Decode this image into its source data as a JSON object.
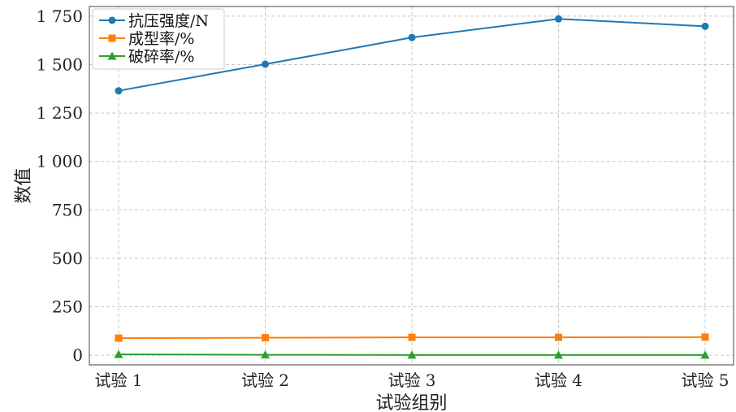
{
  "chart_data": {
    "type": "line",
    "categories": [
      "试验 1",
      "试验 2",
      "试验 3",
      "试验 4",
      "试验 5"
    ],
    "series": [
      {
        "name": "抗压强度/N",
        "values": [
          1365,
          1502,
          1640,
          1736,
          1698
        ],
        "color": "#1f77b4",
        "marker": "circle"
      },
      {
        "name": "成型率/%",
        "values": [
          88,
          90,
          92,
          92,
          93
        ],
        "color": "#ff7f0e",
        "marker": "square"
      },
      {
        "name": "破碎率/%",
        "values": [
          4,
          2,
          1,
          1,
          1
        ],
        "color": "#2ca02c",
        "marker": "triangle"
      }
    ],
    "xlabel": "试验组别",
    "ylabel": "数值",
    "ylim": [
      -50,
      1800
    ],
    "yticks": [
      0,
      250,
      500,
      750,
      1000,
      1250,
      1500,
      1750
    ],
    "ytick_labels": [
      "0",
      "250",
      "500",
      "750",
      "1 000",
      "1 250",
      "1 500",
      "1 750"
    ],
    "grid": true,
    "legend_position": "top-left"
  }
}
